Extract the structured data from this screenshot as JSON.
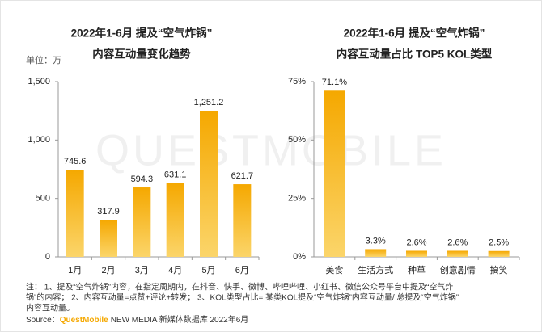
{
  "chart_data": [
    {
      "type": "bar",
      "title": [
        "2022年1-6月 提及“空气炸锅”",
        "内容互动量变化趋势"
      ],
      "unit": "单位：万",
      "categories": [
        "1月",
        "2月",
        "3月",
        "4月",
        "5月",
        "6月"
      ],
      "values": [
        745.6,
        317.9,
        594.3,
        631.1,
        1251.2,
        621.7
      ],
      "value_labels": [
        "745.6",
        "317.9",
        "594.3",
        "631.1",
        "1,251.2",
        "621.7"
      ],
      "color": "#f5a800",
      "ylim": [
        0,
        1500
      ],
      "yticks": [
        0,
        500,
        {
          "value": 1000,
          "label": "1,000"
        },
        {
          "value": 1500,
          "label": "1,500"
        }
      ]
    },
    {
      "type": "bar",
      "title": [
        "2022年1-6月 提及“空气炸锅”",
        "内容互动量占比 TOP5 KOL类型"
      ],
      "categories": [
        "美食",
        "生活方式",
        "种草",
        "创意剧情",
        "搞笑"
      ],
      "values": [
        71.1,
        3.3,
        2.6,
        2.6,
        2.5
      ],
      "value_labels": [
        "71.1%",
        "3.3%",
        "2.6%",
        "2.6%",
        "2.5%"
      ],
      "color": "#f5a800",
      "ylim": [
        0,
        75
      ],
      "yticks": [
        {
          "value": 0,
          "label": "0%"
        },
        {
          "value": 25,
          "label": "25%"
        },
        {
          "value": 50,
          "label": "50%"
        },
        {
          "value": 75,
          "label": "75%"
        }
      ]
    }
  ],
  "watermark": "QUESTMOBILE",
  "notes": [
    "注： 1、提及“空气炸锅”内容，在指定周期内，在抖音、快手、微博、哔哩哔哩、小红书、微信公众号平台中提及“空气炸",
    "锅”的内容； 2、内容互动量=点赞+评论+转发； 3、KOL类型占比= 某类KOL提及“空气炸锅”内容互动量/ 总提及“空气炸锅”",
    "内容互动量。"
  ],
  "source": {
    "label": "Source：",
    "brand": "QuestMobile",
    "text": "NEW MEDIA 新媒体数据库 2022年6月"
  }
}
